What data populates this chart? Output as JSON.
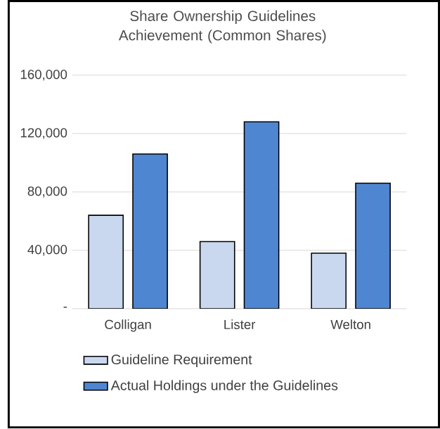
{
  "chart_data": {
    "type": "bar",
    "title": "Share Ownership Guidelines Achievement (Common Shares)",
    "categories": [
      "Colligan",
      "Lister",
      "Welton"
    ],
    "series": [
      {
        "name": "Guideline Requirement",
        "color": "#c9d7ef",
        "values": [
          64000,
          46000,
          38000
        ]
      },
      {
        "name": "Actual Holdings under the Guidelines",
        "color": "#4f86d2",
        "values": [
          106000,
          128000,
          86000
        ]
      }
    ],
    "ylim": [
      0,
      160000
    ],
    "yticks": [
      {
        "value": 0,
        "label": "-"
      },
      {
        "value": 40000,
        "label": "40,000"
      },
      {
        "value": 80000,
        "label": "80,000"
      },
      {
        "value": 120000,
        "label": "120,000"
      },
      {
        "value": 160000,
        "label": "160,000"
      }
    ],
    "grid": "y",
    "legend": "bottom"
  }
}
